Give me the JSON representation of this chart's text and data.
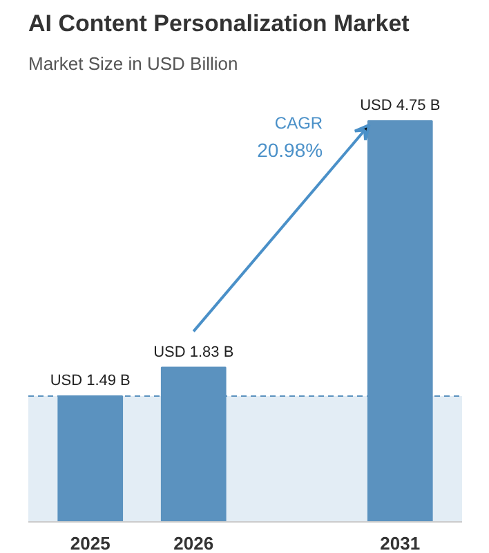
{
  "chart_data": {
    "type": "bar",
    "title": "AI Content Personalization Market",
    "subtitle": "Market Size in USD Billion",
    "categories": [
      "2025",
      "2026",
      null,
      "2031"
    ],
    "values": [
      1.49,
      1.83,
      null,
      4.75
    ],
    "value_labels": [
      "USD 1.49 B",
      "USD 1.83 B",
      null,
      "USD 4.75 B"
    ],
    "color": "#5b92bf",
    "annotations": [
      "CAGR",
      "20.98%"
    ],
    "ref_lines": [
      {
        "axis": "y",
        "value": 1.49,
        "label": null,
        "color": "#5b92bf",
        "line_style": "dashed"
      }
    ],
    "bands": [
      {
        "axis": "y",
        "from": 0,
        "to": 1.49,
        "label": null,
        "color": "#e3edf5"
      }
    ],
    "grid": false
  }
}
